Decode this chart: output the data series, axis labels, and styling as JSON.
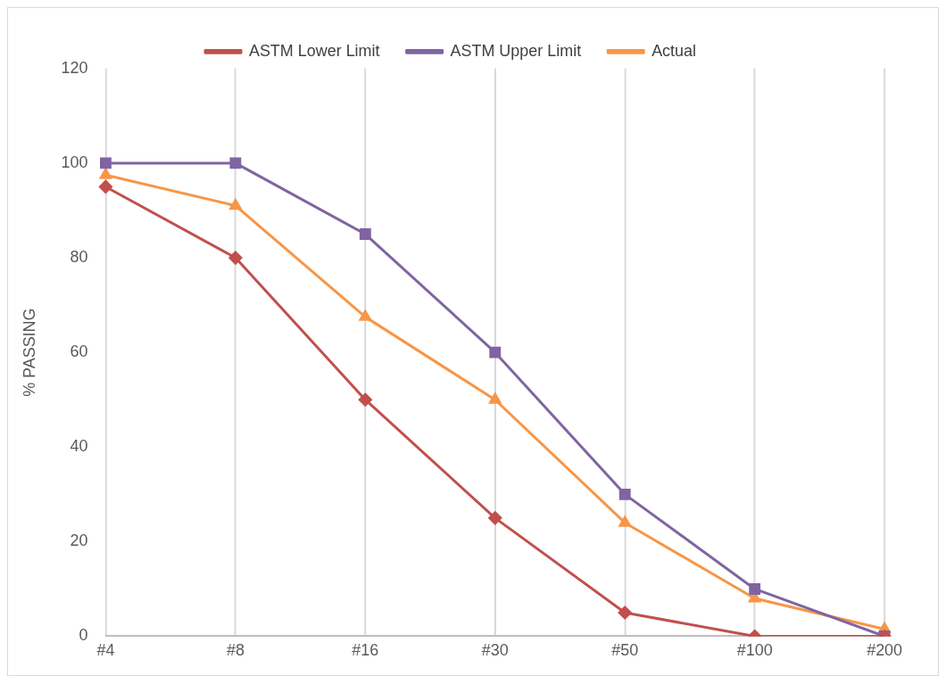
{
  "chart_data": {
    "type": "line",
    "ylabel": "% PASSING",
    "categories": [
      "#4",
      "#8",
      "#16",
      "#30",
      "#50",
      "#100",
      "#200"
    ],
    "series": [
      {
        "name": "ASTM Lower Limit",
        "color": "#c0504d",
        "marker": "diamond",
        "values": [
          95,
          80,
          50,
          25,
          5,
          0,
          0
        ]
      },
      {
        "name": "ASTM Upper Limit",
        "color": "#8064a2",
        "marker": "square",
        "values": [
          100,
          100,
          85,
          60,
          30,
          10,
          0
        ]
      },
      {
        "name": "Actual",
        "color": "#f79646",
        "marker": "triangle",
        "values": [
          97.5,
          91,
          67.5,
          50,
          24,
          8,
          1.5
        ]
      }
    ],
    "ylim": [
      0,
      120
    ],
    "yticks": [
      0,
      20,
      40,
      60,
      80,
      100,
      120
    ],
    "grid": "x",
    "legend": "top"
  }
}
